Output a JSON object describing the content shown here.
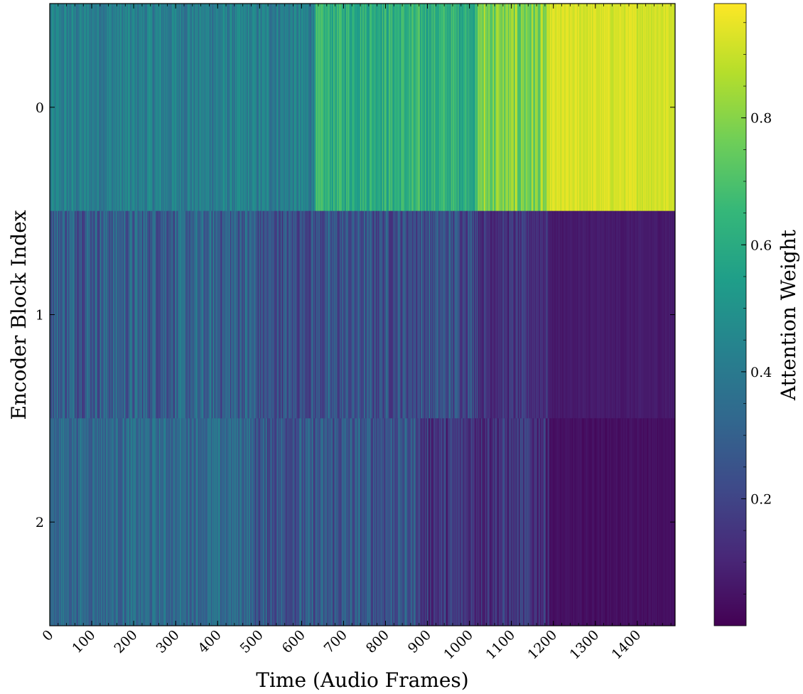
{
  "chart_data": {
    "type": "heatmap",
    "title": "",
    "xlabel": "Time (Audio Frames)",
    "ylabel": "Encoder Block Index",
    "x_range": [
      0,
      1490
    ],
    "x_ticks": [
      "0",
      "100",
      "200",
      "300",
      "400",
      "500",
      "600",
      "700",
      "800",
      "900",
      "1000",
      "1100",
      "1200",
      "1300",
      "1400"
    ],
    "y_categories": [
      "0",
      "1",
      "2"
    ],
    "colormap": "viridis",
    "colorbar": {
      "label": "Attention Weight",
      "range": [
        0.0,
        0.98
      ],
      "ticks": [
        "0.2",
        "0.4",
        "0.6",
        "0.8"
      ]
    },
    "rows": [
      {
        "name": "0",
        "segments": [
          {
            "x_start": 0,
            "x_end": 630,
            "mean": 0.42,
            "variation": 0.1
          },
          {
            "x_start": 630,
            "x_end": 1020,
            "mean": 0.62,
            "variation": 0.11
          },
          {
            "x_start": 1020,
            "x_end": 1190,
            "mean": 0.78,
            "variation": 0.13
          },
          {
            "x_start": 1190,
            "x_end": 1490,
            "mean": 0.92,
            "variation": 0.04
          }
        ]
      },
      {
        "name": "1",
        "segments": [
          {
            "x_start": 0,
            "x_end": 490,
            "mean": 0.3,
            "variation": 0.14
          },
          {
            "x_start": 490,
            "x_end": 1020,
            "mean": 0.24,
            "variation": 0.12
          },
          {
            "x_start": 1020,
            "x_end": 1190,
            "mean": 0.14,
            "variation": 0.08
          },
          {
            "x_start": 1190,
            "x_end": 1490,
            "mean": 0.07,
            "variation": 0.02
          }
        ]
      },
      {
        "name": "2",
        "segments": [
          {
            "x_start": 0,
            "x_end": 480,
            "mean": 0.34,
            "variation": 0.1
          },
          {
            "x_start": 480,
            "x_end": 880,
            "mean": 0.26,
            "variation": 0.12
          },
          {
            "x_start": 880,
            "x_end": 1190,
            "mean": 0.15,
            "variation": 0.11
          },
          {
            "x_start": 1190,
            "x_end": 1490,
            "mean": 0.04,
            "variation": 0.02
          }
        ]
      }
    ],
    "colormap_stops": [
      "#440154",
      "#482878",
      "#3e4a89",
      "#31688e",
      "#26828e",
      "#1f9e89",
      "#35b779",
      "#6ece58",
      "#b5de2b",
      "#fde725"
    ]
  }
}
